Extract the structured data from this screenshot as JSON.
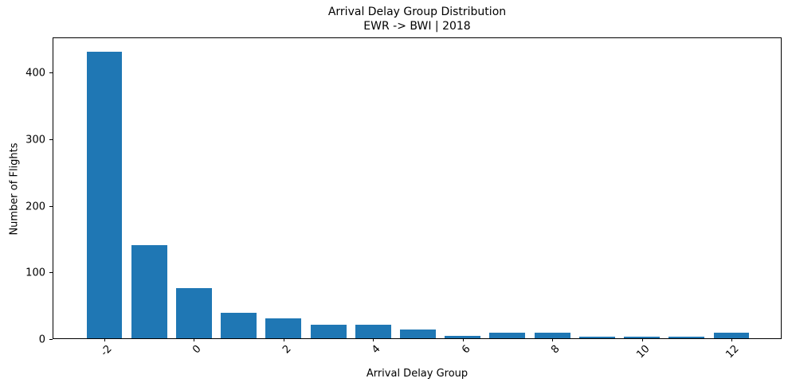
{
  "chart_data": {
    "type": "bar",
    "title": "Arrival Delay Group Distribution",
    "subtitle": "EWR -> BWI | 2018",
    "xlabel": "Arrival Delay Group",
    "ylabel": "Number of Flights",
    "categories": [
      -2,
      -1,
      0,
      1,
      2,
      3,
      4,
      5,
      6,
      7,
      8,
      9,
      10,
      11,
      12
    ],
    "values": [
      430,
      140,
      75,
      38,
      30,
      20,
      20,
      13,
      4,
      8,
      8,
      2,
      2,
      2,
      8
    ],
    "x_tick_labels": [
      "-2",
      "0",
      "2",
      "4",
      "6",
      "8",
      "10",
      "12"
    ],
    "x_tick_positions": [
      -2,
      0,
      2,
      4,
      6,
      8,
      10,
      12
    ],
    "y_ticks": [
      0,
      100,
      200,
      300,
      400
    ],
    "ylim": [
      0,
      453
    ],
    "bar_color": "#1f77b4",
    "grid": false,
    "legend_position": "none"
  }
}
